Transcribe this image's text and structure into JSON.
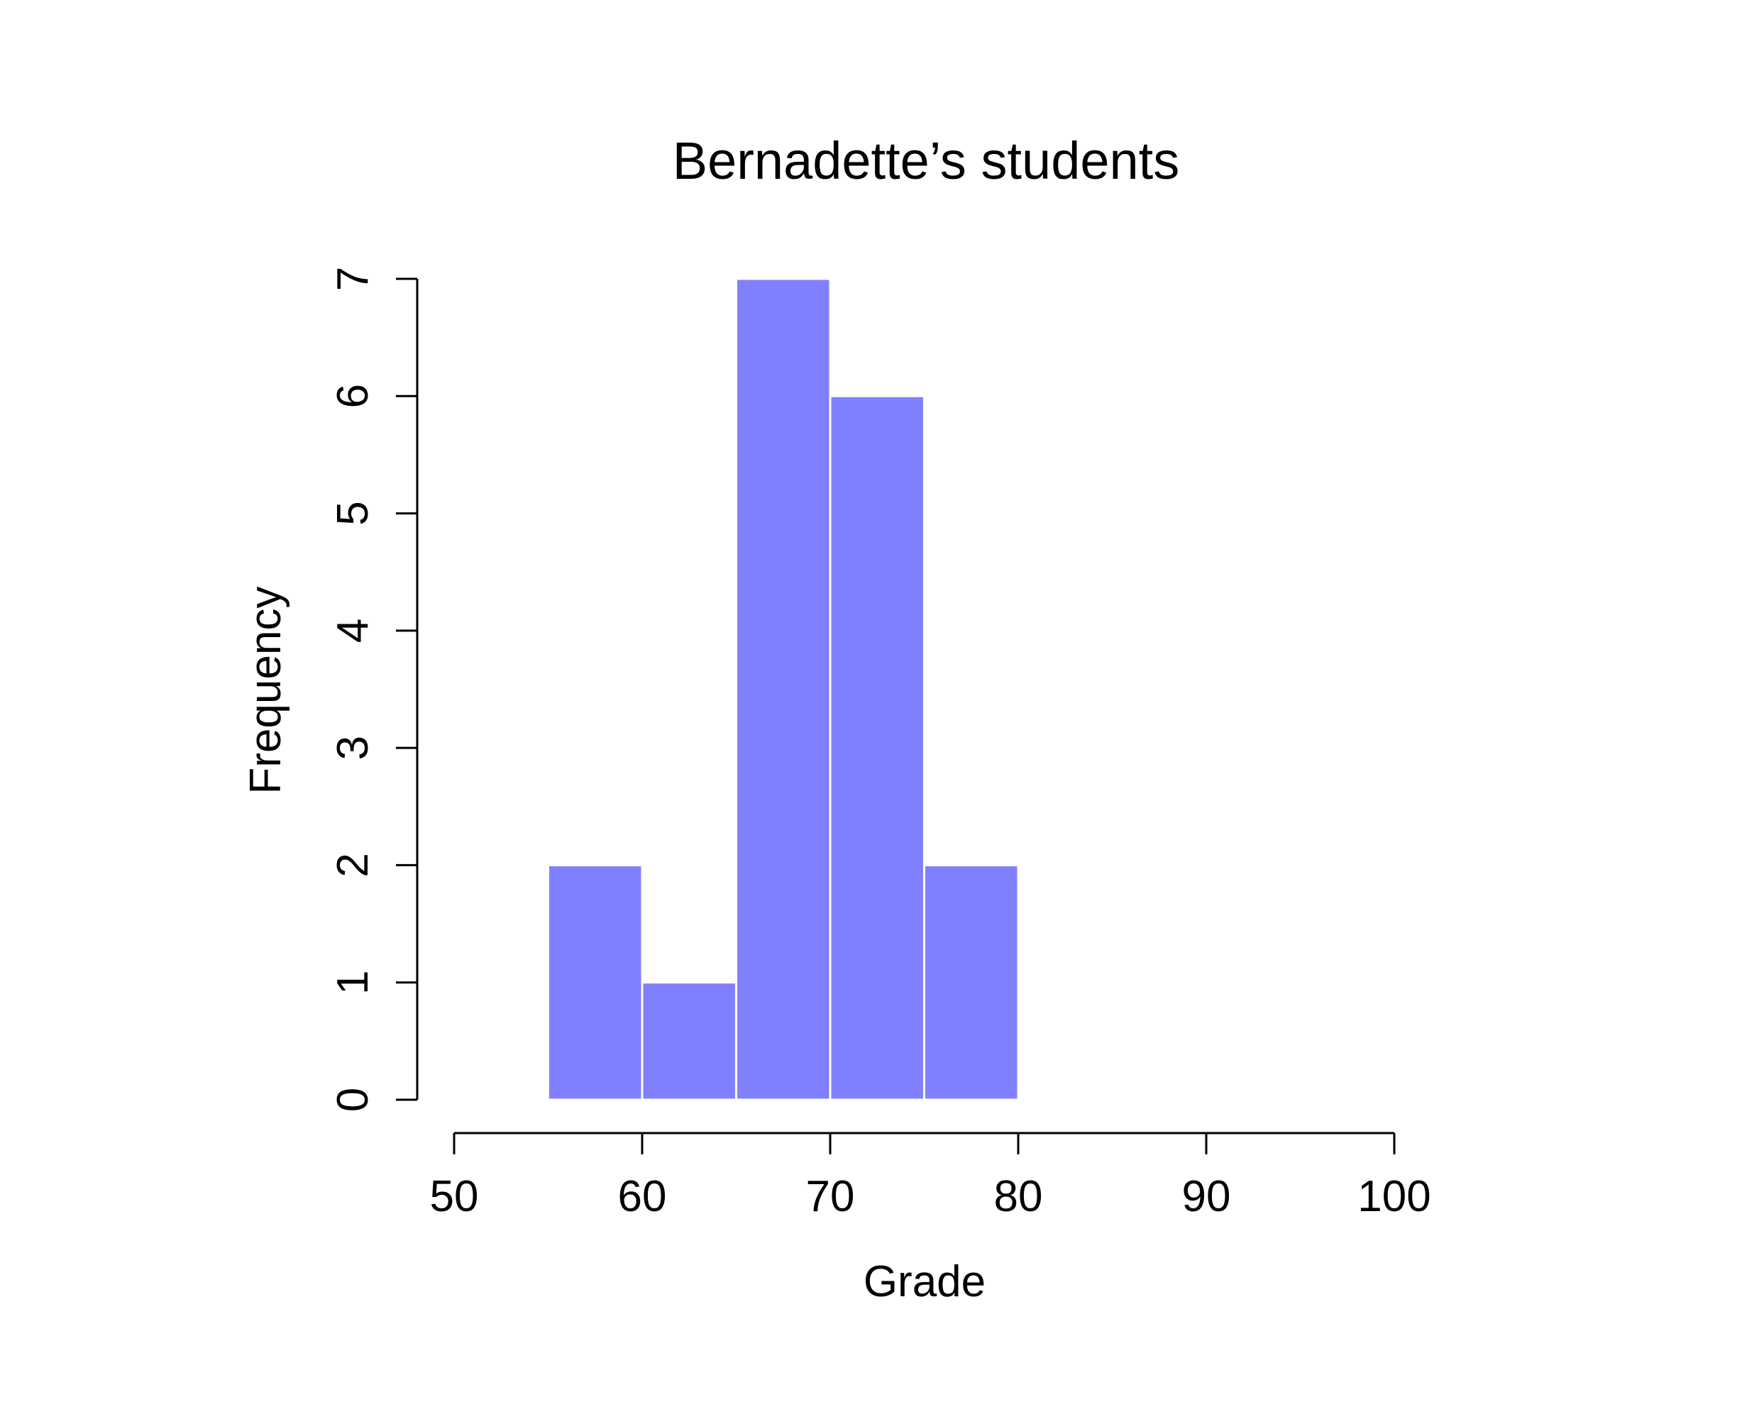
{
  "chart_data": {
    "type": "bar",
    "title": "Bernadette’s students",
    "xlabel": "Grade",
    "ylabel": "Frequency",
    "bins": [
      {
        "from": 55,
        "to": 60,
        "count": 2
      },
      {
        "from": 60,
        "to": 65,
        "count": 1
      },
      {
        "from": 65,
        "to": 70,
        "count": 7
      },
      {
        "from": 70,
        "to": 75,
        "count": 6
      },
      {
        "from": 75,
        "to": 80,
        "count": 2
      }
    ],
    "xlim": [
      50,
      100
    ],
    "ylim": [
      0,
      7
    ],
    "xticks": [
      "50",
      "60",
      "70",
      "80",
      "90",
      "100"
    ],
    "yticks": [
      "0",
      "1",
      "2",
      "3",
      "4",
      "5",
      "6",
      "7"
    ],
    "grid": false,
    "bar_color": "#8080ff"
  }
}
